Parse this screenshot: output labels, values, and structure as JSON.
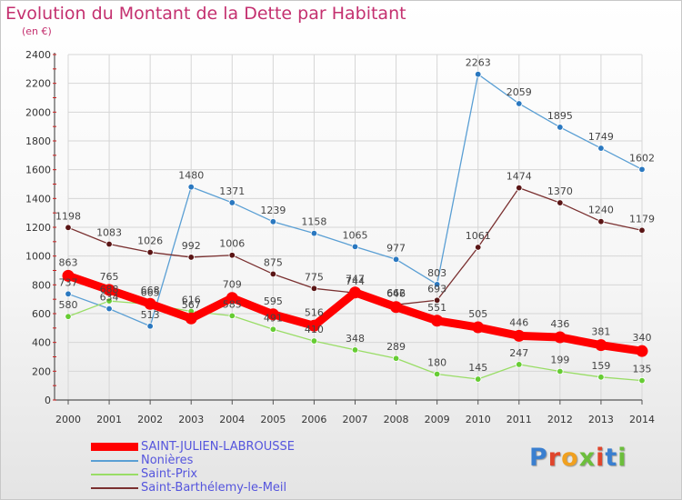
{
  "page": {
    "title": "Evolution du Montant de la Dette par Habitant",
    "subtitle": "(en €)",
    "brand": "Proxiti"
  },
  "chart_data": {
    "type": "line",
    "title": "Evolution du Montant de la Dette par Habitant",
    "subtitle": "(en €)",
    "xlabel": "",
    "ylabel": "",
    "x": [
      2000,
      2001,
      2002,
      2003,
      2004,
      2005,
      2006,
      2007,
      2008,
      2009,
      2010,
      2011,
      2012,
      2013,
      2014
    ],
    "ylim": [
      0,
      2400
    ],
    "yticks": [
      0,
      200,
      400,
      600,
      800,
      1000,
      1200,
      1400,
      1600,
      1800,
      2000,
      2200,
      2400
    ],
    "grid": true,
    "legend_position": "bottom-left",
    "series": [
      {
        "name": "Nonières",
        "color": "#5a9fd4",
        "point_color": "#2a78c0",
        "values": [
          737,
          634,
          513,
          1480,
          1371,
          1239,
          1158,
          1065,
          977,
          803,
          2263,
          2059,
          1895,
          1749,
          1602
        ]
      },
      {
        "name": "Saint-Barthélemy-le-Meil",
        "color": "#7a3030",
        "point_color": "#5a1515",
        "values": [
          1198,
          1083,
          1026,
          992,
          1006,
          875,
          775,
          744,
          662,
          693,
          1061,
          1474,
          1370,
          1240,
          1179
        ]
      },
      {
        "name": "Saint-Prix",
        "color": "#99dd66",
        "point_color": "#66cc33",
        "values": [
          580,
          688,
          665,
          616,
          585,
          491,
          410,
          348,
          289,
          180,
          145,
          247,
          199,
          159,
          135
        ]
      },
      {
        "name": "SAINT-JULIEN-LABROUSSE",
        "color": "#ff0000",
        "point_color": "#ff0000",
        "values": [
          863,
          765,
          668,
          567,
          709,
          595,
          516,
          747,
          646,
          551,
          505,
          446,
          436,
          381,
          340
        ],
        "highlight": true
      }
    ]
  },
  "legend": [
    {
      "label": "SAINT-JULIEN-LABROUSSE",
      "color": "#ff0000",
      "highlight": true
    },
    {
      "label": "Nonières",
      "color": "#5a9fd4"
    },
    {
      "label": "Saint-Prix",
      "color": "#99dd66"
    },
    {
      "label": "Saint-Barthélemy-le-Meil",
      "color": "#7a3030"
    }
  ]
}
